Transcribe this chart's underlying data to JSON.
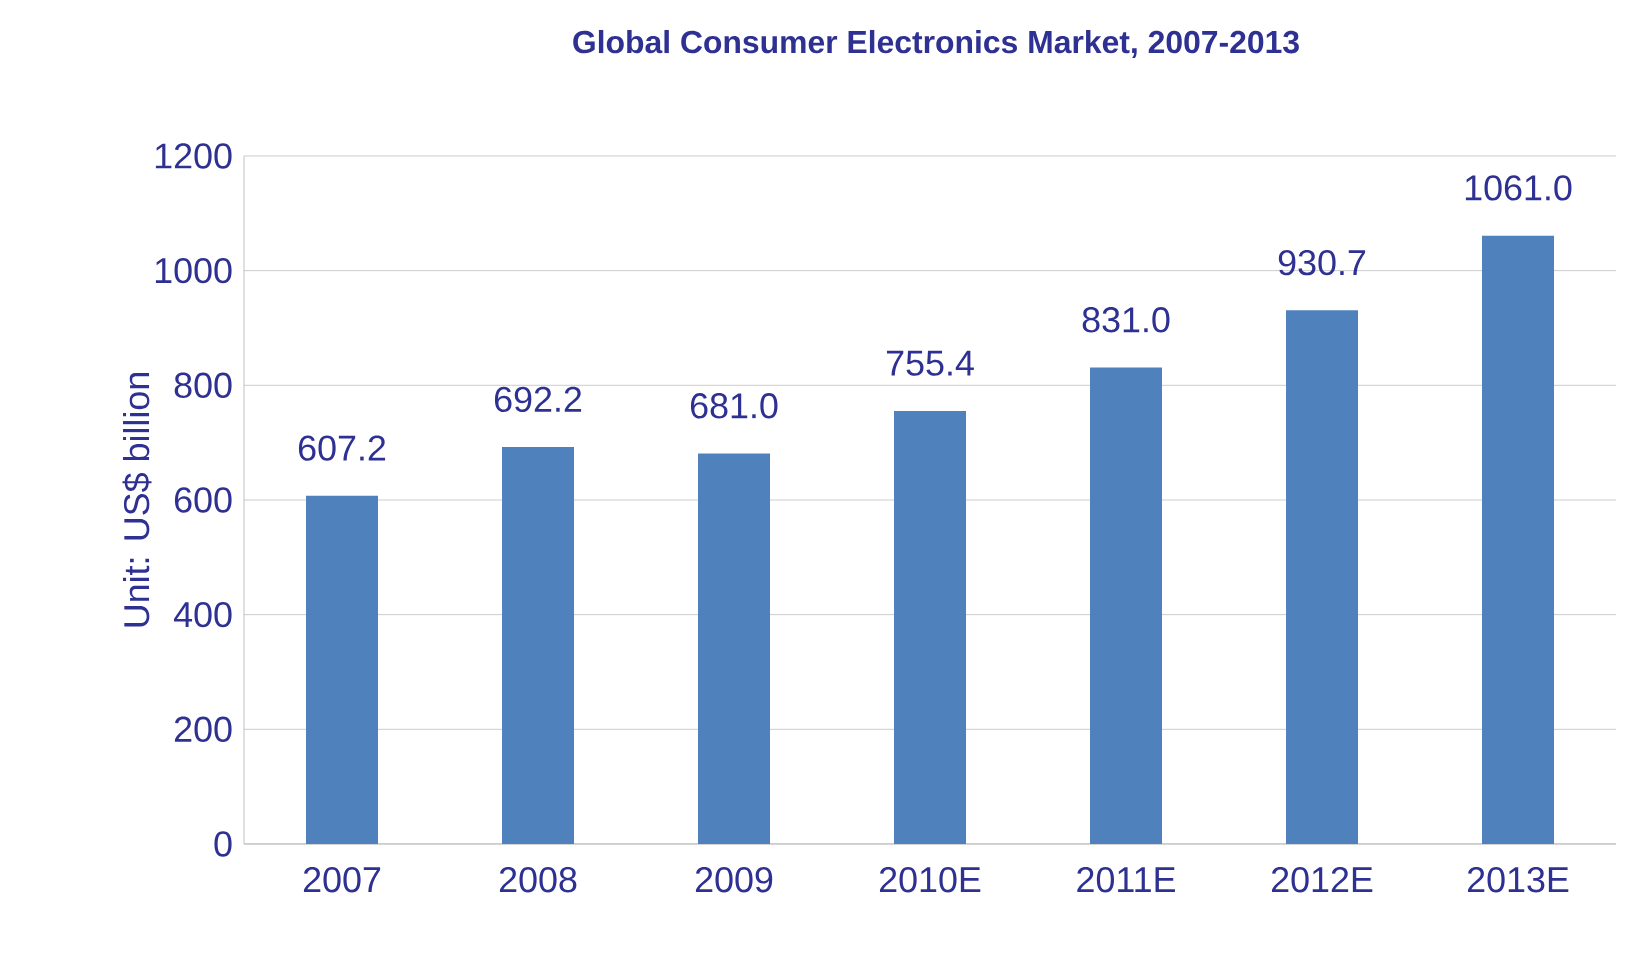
{
  "chart_data": {
    "type": "bar",
    "title": "Global Consumer Electronics Market, 2007-2013",
    "ylabel": "Unit: US$ billion",
    "categories": [
      "2007",
      "2008",
      "2009",
      "2010E",
      "2011E",
      "2012E",
      "2013E"
    ],
    "values": [
      607.2,
      692.2,
      681.0,
      755.4,
      831.0,
      930.7,
      1061.0
    ],
    "value_labels": [
      "607.2",
      "692.2",
      "681.0",
      "755.4",
      "831.0",
      "930.7",
      "1061.0"
    ],
    "color": "#4f81bd",
    "ylim": [
      0,
      1200
    ],
    "yticks": [
      0,
      200,
      400,
      600,
      800,
      1000,
      1200
    ],
    "grid": "y"
  }
}
